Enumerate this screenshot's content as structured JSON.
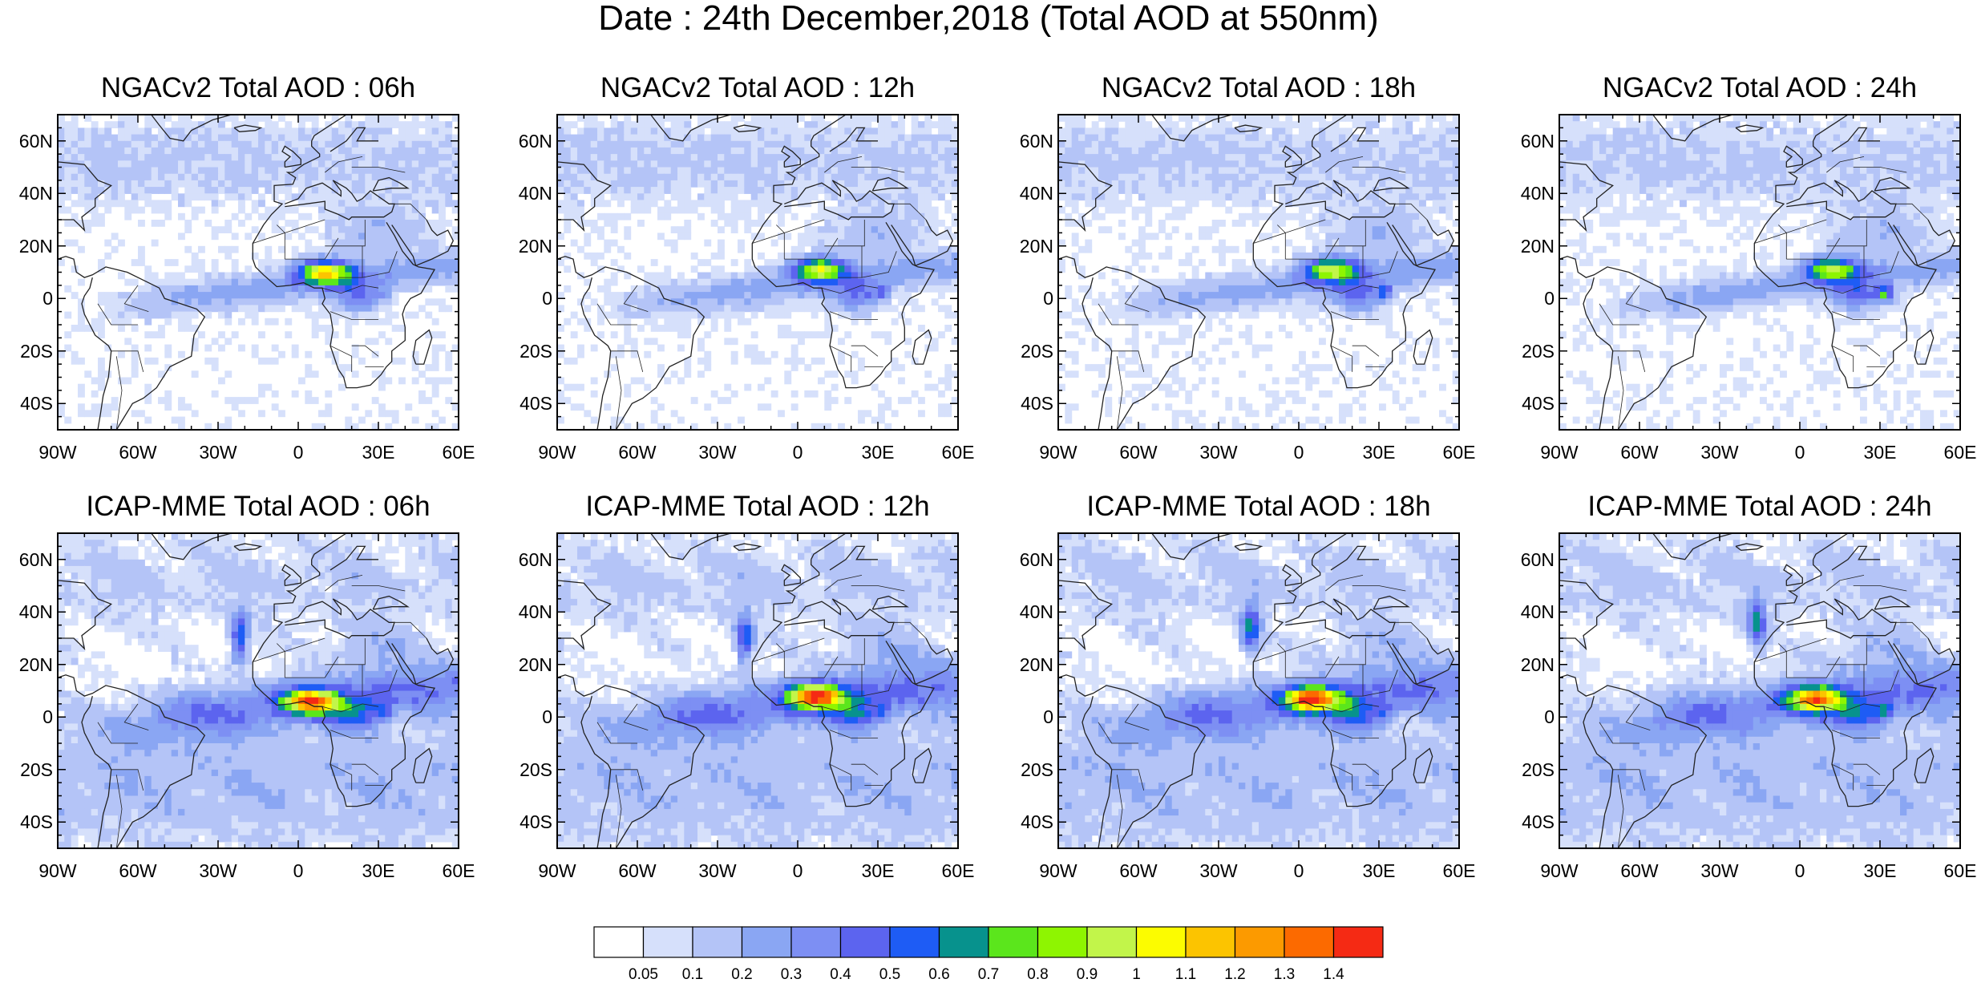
{
  "title": "Date : 24th December,2018 (Total AOD at 550nm)",
  "panels": [
    {
      "title": "NGACv2 Total AOD : 06h",
      "model": "NGACv2",
      "hour": 6
    },
    {
      "title": "NGACv2 Total AOD : 12h",
      "model": "NGACv2",
      "hour": 12
    },
    {
      "title": "NGACv2 Total AOD : 18h",
      "model": "NGACv2",
      "hour": 18
    },
    {
      "title": "NGACv2 Total AOD : 24h",
      "model": "NGACv2",
      "hour": 24
    },
    {
      "title": "ICAP-MME Total AOD : 06h",
      "model": "ICAP-MME",
      "hour": 6
    },
    {
      "title": "ICAP-MME Total AOD : 12h",
      "model": "ICAP-MME",
      "hour": 12
    },
    {
      "title": "ICAP-MME Total AOD : 18h",
      "model": "ICAP-MME",
      "hour": 18
    },
    {
      "title": "ICAP-MME Total AOD : 24h",
      "model": "ICAP-MME",
      "hour": 24
    }
  ],
  "map": {
    "lon_range": [
      -90,
      60
    ],
    "lat_range": [
      -50,
      70
    ],
    "lat_ticks": [
      {
        "value": 60,
        "label": "60N"
      },
      {
        "value": 40,
        "label": "40N"
      },
      {
        "value": 20,
        "label": "20N"
      },
      {
        "value": 0,
        "label": "0"
      },
      {
        "value": -20,
        "label": "20S"
      },
      {
        "value": -40,
        "label": "40S"
      }
    ],
    "lon_ticks": [
      {
        "value": -90,
        "label": "90W"
      },
      {
        "value": -60,
        "label": "60W"
      },
      {
        "value": -30,
        "label": "30W"
      },
      {
        "value": 0,
        "label": "0"
      },
      {
        "value": 30,
        "label": "30E"
      },
      {
        "value": 60,
        "label": "60E"
      }
    ]
  },
  "colorbar": {
    "colors": [
      "#ffffff",
      "#d6e0fb",
      "#b4c4f7",
      "#8aa6f3",
      "#7d8ff3",
      "#5c64ef",
      "#1e5cf5",
      "#07928d",
      "#5be61c",
      "#8ef501",
      "#c2f54a",
      "#fcfc00",
      "#fcc400",
      "#fc9a00",
      "#fc6a00",
      "#f52a14"
    ],
    "levels": [
      "0.05",
      "0.1",
      "0.2",
      "0.3",
      "0.4",
      "0.5",
      "0.6",
      "0.7",
      "0.8",
      "0.9",
      "1",
      "1.1",
      "1.2",
      "1.3",
      "1.4"
    ]
  }
}
